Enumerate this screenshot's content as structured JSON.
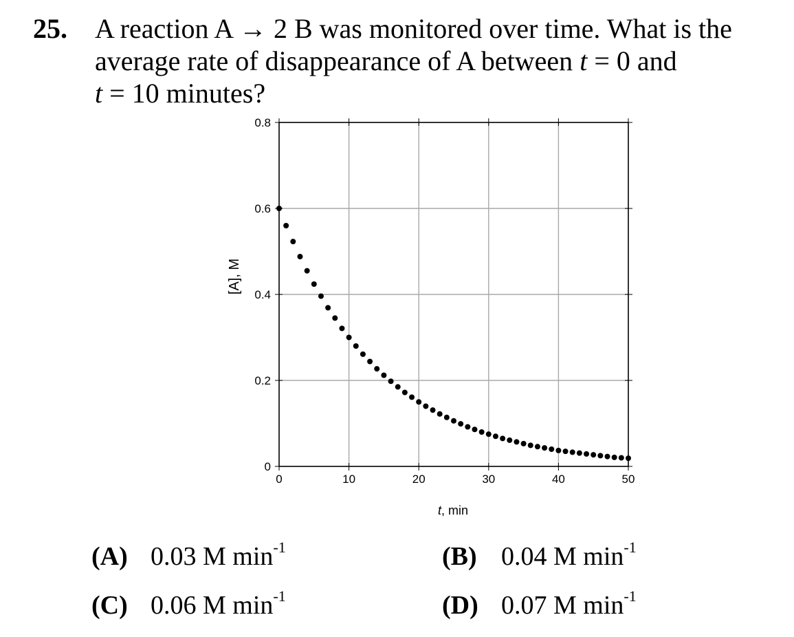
{
  "question": {
    "number": "25.",
    "text_part1": "A reaction A → 2 B was monitored over time.  What is the average rate of disappearance of A between ",
    "t1_var": "t",
    "t1_eq": " = 0 and ",
    "t2_var": "t",
    "t2_eq": " = 10 minutes?"
  },
  "chart_data": {
    "type": "scatter",
    "xlabel_var": "t",
    "xlabel_unit": ", min",
    "ylabel": "[A], M",
    "xlim": [
      0,
      50
    ],
    "ylim": [
      0,
      0.8
    ],
    "x_ticks": [
      "0",
      "10",
      "20",
      "30",
      "40",
      "50"
    ],
    "y_ticks": [
      "0",
      "0.2",
      "0.4",
      "0.6",
      "0.8"
    ],
    "grid": true,
    "marker_color": "#000000",
    "x": [
      0,
      1,
      2,
      3,
      4,
      5,
      6,
      7,
      8,
      9,
      10,
      11,
      12,
      13,
      14,
      15,
      16,
      17,
      18,
      19,
      20,
      21,
      22,
      23,
      24,
      25,
      26,
      27,
      28,
      29,
      30,
      31,
      32,
      33,
      34,
      35,
      36,
      37,
      38,
      39,
      40,
      41,
      42,
      43,
      44,
      45,
      46,
      47,
      48,
      49,
      50
    ],
    "y": [
      0.6,
      0.56,
      0.523,
      0.488,
      0.455,
      0.424,
      0.396,
      0.369,
      0.345,
      0.321,
      0.3,
      0.28,
      0.261,
      0.244,
      0.227,
      0.212,
      0.198,
      0.185,
      0.172,
      0.161,
      0.15,
      0.14,
      0.131,
      0.122,
      0.114,
      0.106,
      0.099,
      0.092,
      0.086,
      0.08,
      0.075,
      0.07,
      0.065,
      0.061,
      0.057,
      0.053,
      0.049,
      0.046,
      0.043,
      0.04,
      0.037,
      0.035,
      0.033,
      0.031,
      0.029,
      0.027,
      0.025,
      0.023,
      0.021,
      0.02,
      0.019
    ]
  },
  "choices": [
    {
      "letter": "(A)",
      "value": "0.03 M min",
      "exp": "-1"
    },
    {
      "letter": "(B)",
      "value": "0.04 M min",
      "exp": "-1"
    },
    {
      "letter": "(C)",
      "value": "0.06 M min",
      "exp": "-1"
    },
    {
      "letter": "(D)",
      "value": "0.07 M min",
      "exp": "-1"
    }
  ]
}
